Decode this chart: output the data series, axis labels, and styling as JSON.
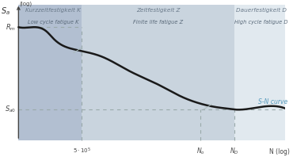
{
  "region1_label_de": "Kurzzeitfestigkeit K",
  "region1_label_en": "Low cycle fatigue K",
  "region2_label_de": "Zeitfestigkeit Z",
  "region2_label_en": "Finite life fatigue Z",
  "region3_label_de": "Dauerfestigkeit D",
  "region3_label_en": "High cycle fatigue D",
  "sn_label": "S-N curve",
  "ylabel_main": "S_a",
  "ylabel_sub": "(log)",
  "xlabel": "N (log)",
  "Rm_label": "R_m",
  "Sad_label": "S_a0",
  "x_5e5_label": "5·10⁵",
  "x_No_label": "N_o",
  "x_ND_label": "N_D",
  "curve_color": "#1a1a1a",
  "dashed_color": "#9aaaaa",
  "vline_color": "#9aabab",
  "text_color_de": "#6a7a8a",
  "text_color_en": "#5a6a7a",
  "sn_text_color": "#5599bb",
  "axis_color": "#444444",
  "bg1_color": "#aab8cc",
  "bg2_color": "#c0cdd9",
  "bg3_color": "#d8e2ea",
  "figsize": [
    3.7,
    1.98
  ],
  "dpi": 100,
  "xlim": [
    0,
    10
  ],
  "ylim": [
    0,
    10
  ],
  "ax_x0": 0.55,
  "ax_y0": 0.5,
  "ax_x1": 9.8,
  "ax_y1": 9.7,
  "x_5e5": 2.8,
  "x_No": 7.0,
  "x_ND": 8.2,
  "y_Rm": 8.2,
  "y_Sad": 2.6
}
